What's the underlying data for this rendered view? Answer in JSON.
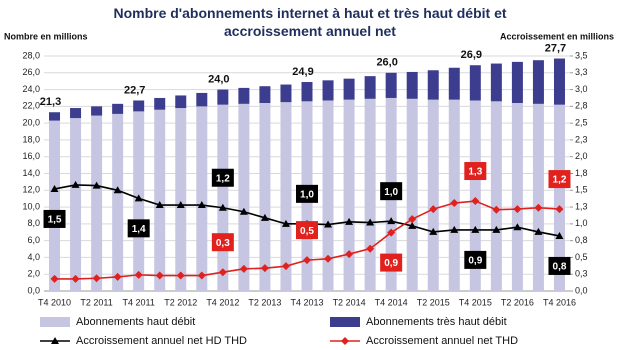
{
  "chart_data": {
    "type": "bar",
    "title": "Nombre d'abonnements internet à haut et très haut débit et accroissement annuel net",
    "y_label": "Nombre en millions",
    "y2_label": "Accroissement en millions",
    "categories": [
      "T4 2010",
      null,
      "T2 2011",
      null,
      "T4 2011",
      null,
      "T2 2012",
      null,
      "T4 2012",
      null,
      "T2 2013",
      null,
      "T4 2013",
      null,
      "T2 2014",
      null,
      "T4 2014",
      null,
      "T2 2015",
      null,
      "T4 2015",
      null,
      "T2 2016",
      null,
      "T4 2016"
    ],
    "ylim": [
      0,
      28
    ],
    "yticks": [
      {
        "value": 0,
        "label": "0,0"
      },
      {
        "value": 2,
        "label": "2,0"
      },
      {
        "value": 4,
        "label": "4,0"
      },
      {
        "value": 6,
        "label": "6,0"
      },
      {
        "value": 8,
        "label": "8,0"
      },
      {
        "value": 10,
        "label": "10,0"
      },
      {
        "value": 12,
        "label": "12,0"
      },
      {
        "value": 14,
        "label": "14,0"
      },
      {
        "value": 16,
        "label": "16,0"
      },
      {
        "value": 18,
        "label": "18,0"
      },
      {
        "value": 20,
        "label": "20,0"
      },
      {
        "value": 22,
        "label": "22,0"
      },
      {
        "value": 24,
        "label": "24,0"
      },
      {
        "value": 26,
        "label": "26,0"
      },
      {
        "value": 28,
        "label": "28,0"
      }
    ],
    "y2lim": [
      0,
      3.5
    ],
    "y2ticks": [
      {
        "value": 0,
        "label": "0,0"
      },
      {
        "value": 0.25,
        "label": "0,3"
      },
      {
        "value": 0.5,
        "label": "0,5"
      },
      {
        "value": 0.75,
        "label": "0,8"
      },
      {
        "value": 1,
        "label": "1,0"
      },
      {
        "value": 1.25,
        "label": "1,3"
      },
      {
        "value": 1.5,
        "label": "1,5"
      },
      {
        "value": 1.75,
        "label": "1,8"
      },
      {
        "value": 2,
        "label": "2,0"
      },
      {
        "value": 2.25,
        "label": "2,3"
      },
      {
        "value": 2.5,
        "label": "2,5"
      },
      {
        "value": 2.75,
        "label": "2,8"
      },
      {
        "value": 3,
        "label": "3,0"
      },
      {
        "value": 3.25,
        "label": "3,3"
      },
      {
        "value": 3.5,
        "label": "3,5"
      }
    ],
    "grid": true,
    "total_labels": [
      "21,3",
      null,
      null,
      null,
      "22,7",
      null,
      null,
      null,
      "24,0",
      null,
      null,
      null,
      "24,9",
      null,
      null,
      null,
      "26,0",
      null,
      null,
      null,
      "26,9",
      null,
      null,
      null,
      "27,7"
    ],
    "series": [
      {
        "name": "Abonnements haut débit",
        "type": "bar",
        "color": "#c6c6e2",
        "values": [
          20.3,
          20.6,
          20.9,
          21.1,
          21.4,
          21.6,
          21.8,
          22.0,
          22.2,
          22.3,
          22.4,
          22.5,
          22.6,
          22.7,
          22.8,
          22.9,
          23.0,
          22.9,
          22.8,
          22.8,
          22.7,
          22.6,
          22.4,
          22.3,
          22.2
        ]
      },
      {
        "name": "Abonnements très haut débit",
        "type": "bar",
        "color": "#3d3d8f",
        "values": [
          1.0,
          1.2,
          1.1,
          1.2,
          1.3,
          1.4,
          1.5,
          1.6,
          1.8,
          1.9,
          2.0,
          2.1,
          2.3,
          2.4,
          2.5,
          2.7,
          3.0,
          3.2,
          3.5,
          3.8,
          4.2,
          4.5,
          4.9,
          5.2,
          5.5
        ]
      },
      {
        "name": "Accroissement annuel net HD THD",
        "type": "line",
        "axis": "y2",
        "color": "#000000",
        "marker": "triangle",
        "values": [
          1.52,
          1.58,
          1.57,
          1.5,
          1.38,
          1.28,
          1.28,
          1.28,
          1.24,
          1.18,
          1.09,
          1.0,
          1.0,
          0.99,
          1.03,
          1.02,
          1.04,
          0.97,
          0.88,
          0.91,
          0.91,
          0.91,
          0.95,
          0.88,
          0.82
        ],
        "value_labels": [
          "1,5",
          null,
          null,
          null,
          "1,4",
          null,
          null,
          null,
          "1,2",
          null,
          null,
          null,
          "1,0",
          null,
          null,
          null,
          "1,0",
          null,
          null,
          null,
          "0,9",
          null,
          null,
          null,
          "0,8"
        ]
      },
      {
        "name": "Accroissement annuel net THD",
        "type": "line",
        "axis": "y2",
        "color": "#e0211d",
        "marker": "diamond",
        "values": [
          0.18,
          0.18,
          0.19,
          0.21,
          0.24,
          0.23,
          0.23,
          0.23,
          0.28,
          0.33,
          0.34,
          0.37,
          0.46,
          0.48,
          0.55,
          0.63,
          0.87,
          1.07,
          1.22,
          1.31,
          1.34,
          1.21,
          1.22,
          1.24,
          1.22
        ],
        "value_labels": [
          null,
          null,
          null,
          null,
          null,
          null,
          null,
          null,
          "0,3",
          null,
          null,
          null,
          "0,5",
          null,
          null,
          null,
          "0,9",
          null,
          null,
          null,
          "1,3",
          null,
          null,
          null,
          "1,2"
        ]
      }
    ]
  }
}
